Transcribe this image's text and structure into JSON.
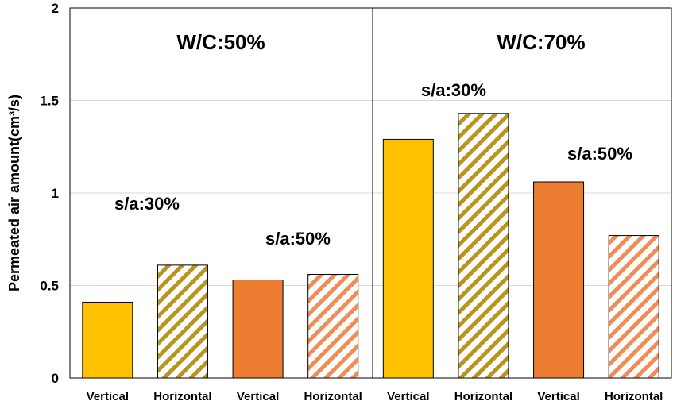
{
  "chart_data": {
    "type": "bar",
    "ylabel": "Permeated air amount(cm³/s)",
    "ylim": [
      0,
      2
    ],
    "yticks": [
      0,
      0.5,
      1,
      1.5,
      2
    ],
    "ytick_labels": [
      "0",
      "0.5",
      "1",
      "1.5",
      "2"
    ],
    "grid": "horizontal",
    "legend": "none",
    "colors": {
      "vertical_30": "#ffc000",
      "horizontal_30_stripe": "#b8951d",
      "vertical_50": "#ed7d31",
      "horizontal_50_stripe": "#f08c55",
      "outline": "#000000",
      "grid": "#d9d9d9"
    },
    "panels": [
      {
        "title": "W/C:50%",
        "groups": [
          {
            "label": "s/a:30%",
            "bars": [
              {
                "category": "Vertical",
                "value": 0.41,
                "style": "vertical_30"
              },
              {
                "category": "Horizontal",
                "value": 0.61,
                "style": "horizontal_30"
              }
            ]
          },
          {
            "label": "s/a:50%",
            "bars": [
              {
                "category": "Vertical",
                "value": 0.53,
                "style": "vertical_50"
              },
              {
                "category": "Horizontal",
                "value": 0.56,
                "style": "horizontal_50"
              }
            ]
          }
        ]
      },
      {
        "title": "W/C:70%",
        "groups": [
          {
            "label": "s/a:30%",
            "bars": [
              {
                "category": "Vertical",
                "value": 1.29,
                "style": "vertical_30"
              },
              {
                "category": "Horizontal",
                "value": 1.43,
                "style": "horizontal_30"
              }
            ]
          },
          {
            "label": "s/a:50%",
            "bars": [
              {
                "category": "Vertical",
                "value": 1.06,
                "style": "vertical_50"
              },
              {
                "category": "Horizontal",
                "value": 0.77,
                "style": "horizontal_50"
              }
            ]
          }
        ]
      }
    ]
  }
}
